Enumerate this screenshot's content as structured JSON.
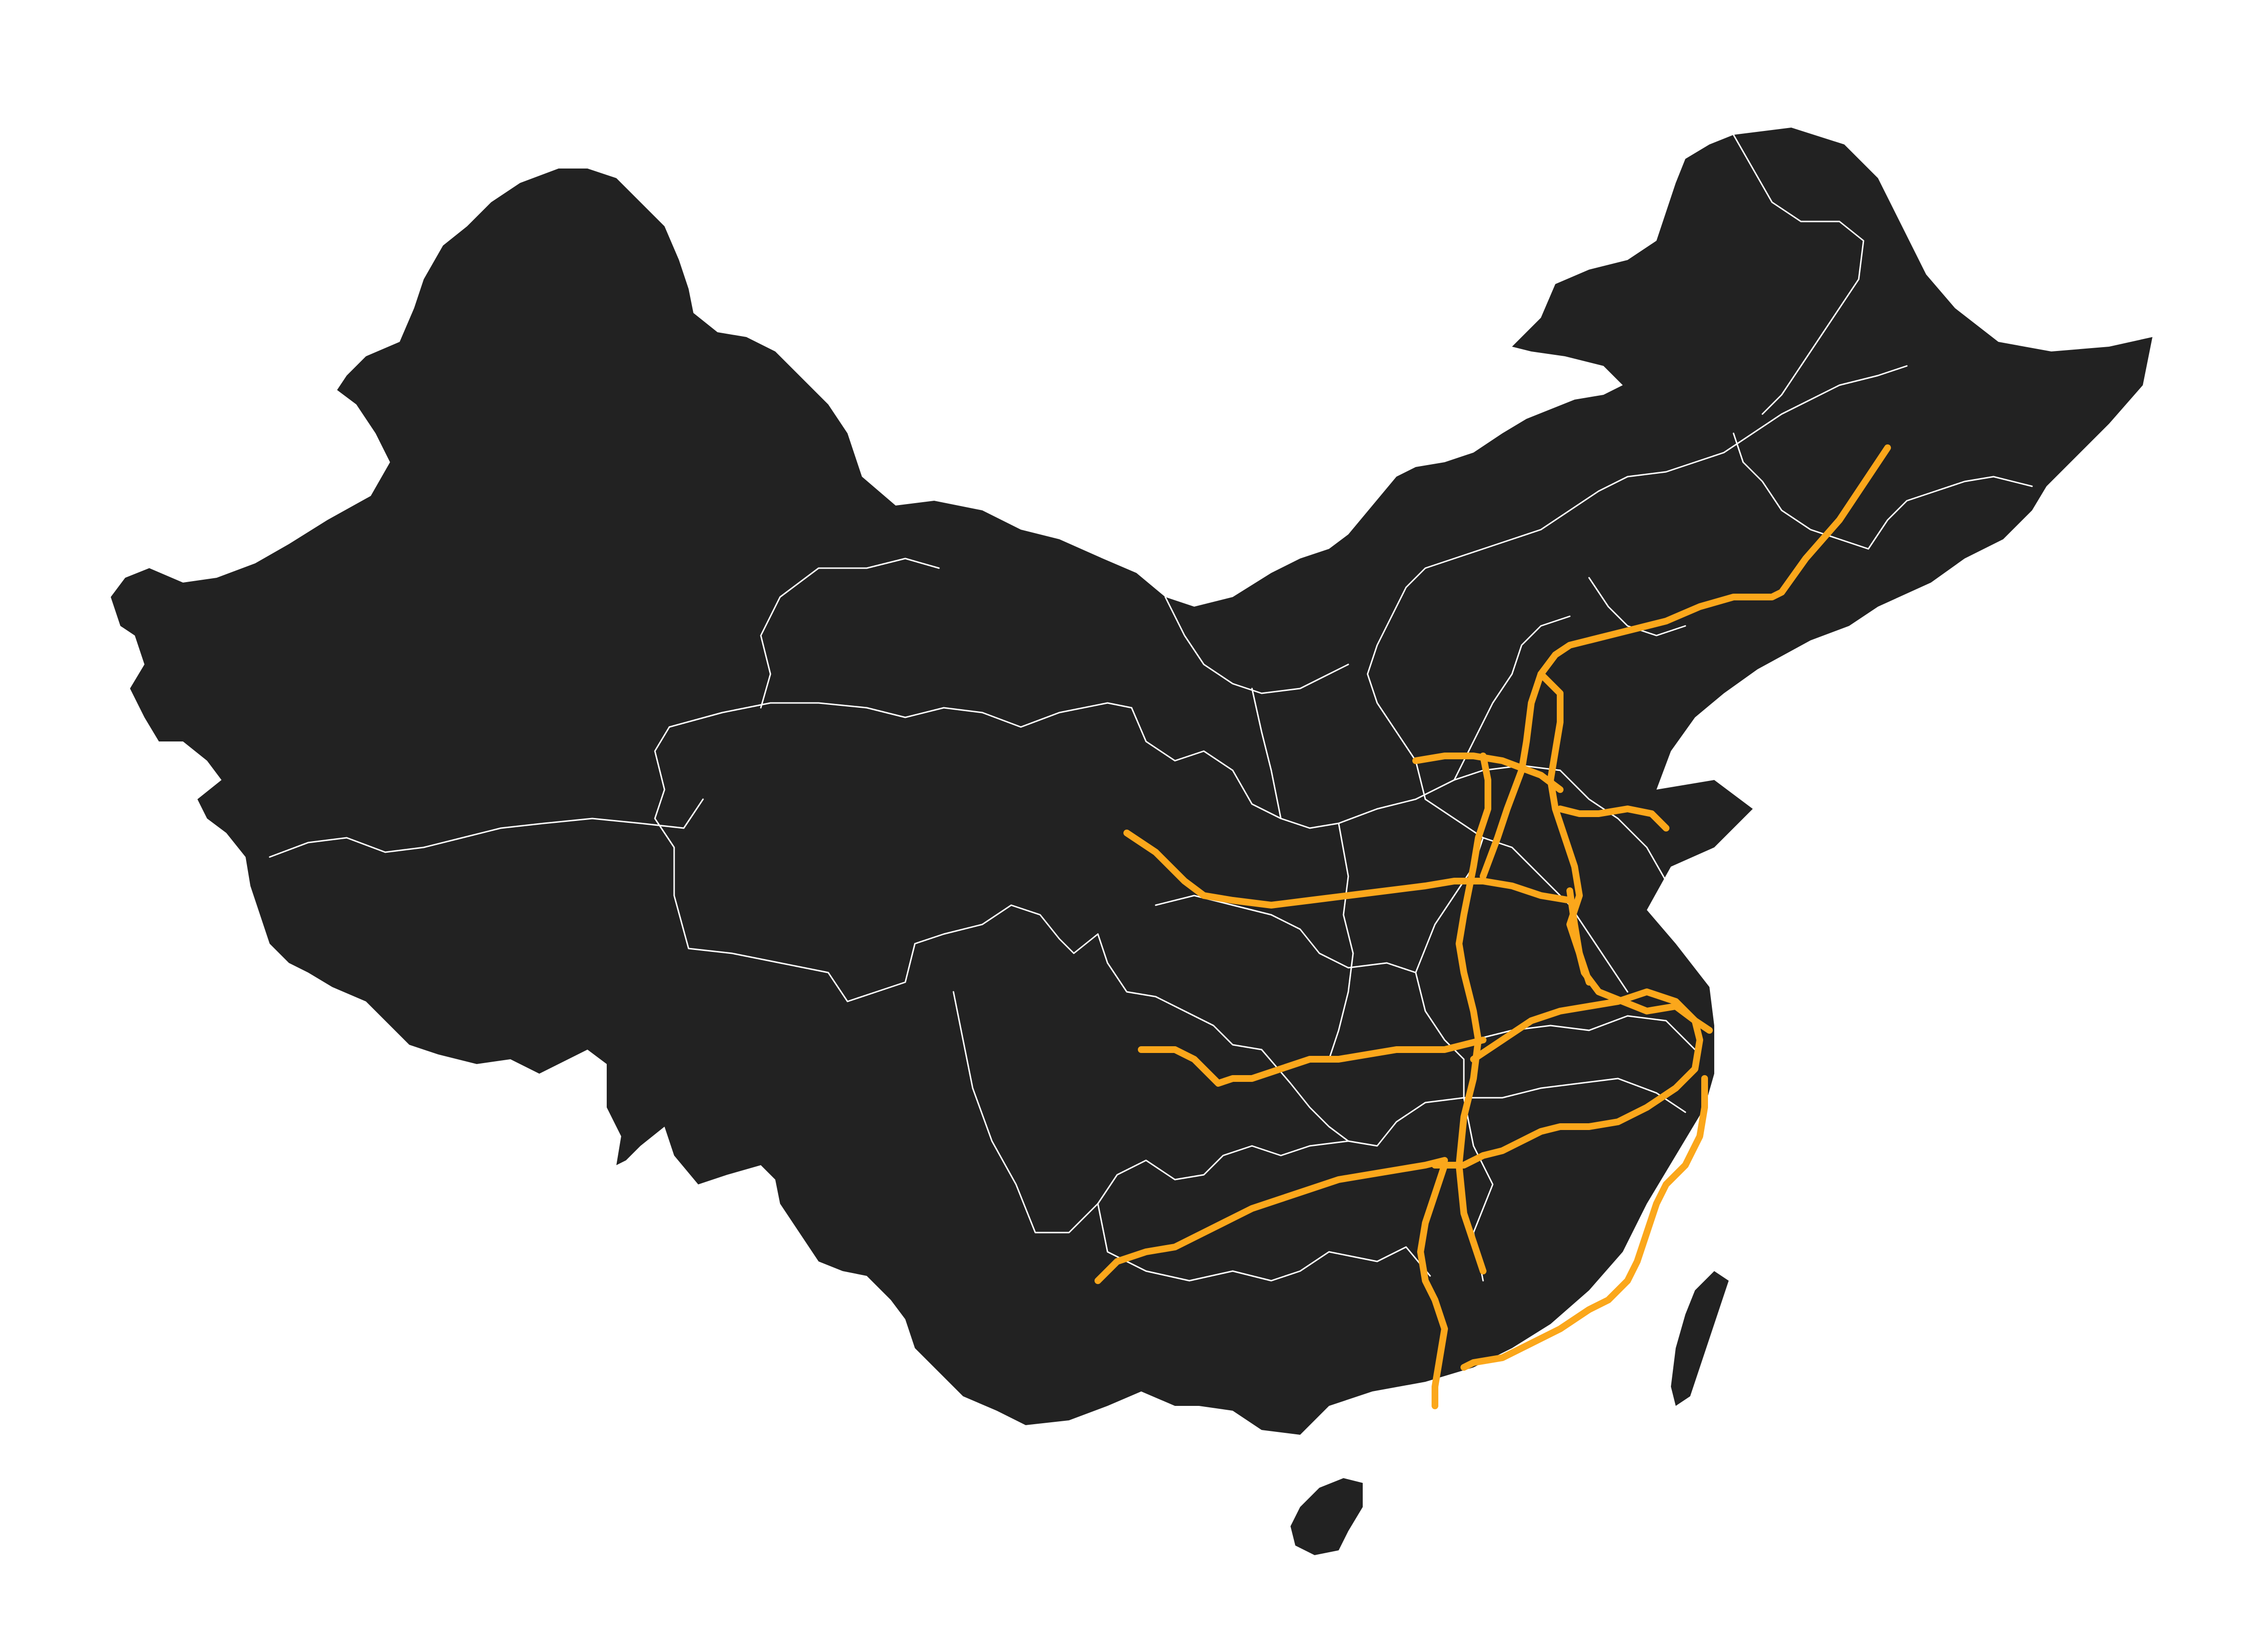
{
  "map": {
    "land_color": "#222222",
    "border_color": "#ffffff",
    "background_color": "#ffffff",
    "route_color": "#FBA71B",
    "route_count": 12
  }
}
